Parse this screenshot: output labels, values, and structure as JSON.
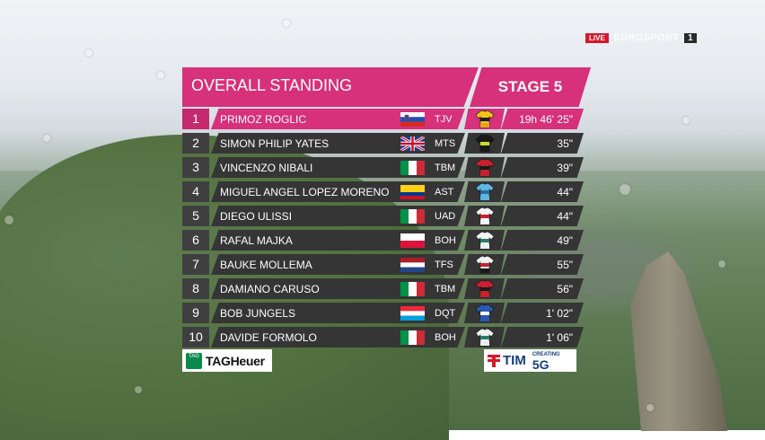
{
  "broadcast": {
    "live": "LIVE",
    "channel_name": "EUROSPORT",
    "channel_number": "1"
  },
  "standings": {
    "title": "OVERALL STANDING",
    "stage": "STAGE 5",
    "rows": [
      {
        "rank": "1",
        "name": "PRIMOZ ROGLIC",
        "flag": "slovenia",
        "team": "TJV",
        "jersey": "yellow-black",
        "time": "19h 46' 25\""
      },
      {
        "rank": "2",
        "name": "SIMON PHILIP YATES",
        "flag": "uk",
        "team": "MTS",
        "jersey": "black-yellow",
        "time": "35\""
      },
      {
        "rank": "3",
        "name": "VINCENZO NIBALI",
        "flag": "italy",
        "team": "TBM",
        "jersey": "red-black",
        "time": "39\""
      },
      {
        "rank": "4",
        "name": "MIGUEL ANGEL LOPEZ MORENO",
        "flag": "colombia",
        "team": "AST",
        "jersey": "light-blue",
        "time": "44\""
      },
      {
        "rank": "5",
        "name": "DIEGO ULISSI",
        "flag": "italy",
        "team": "UAD",
        "jersey": "white-red",
        "time": "44\""
      },
      {
        "rank": "6",
        "name": "RAFAL MAJKA",
        "flag": "poland",
        "team": "BOH",
        "jersey": "white-teal",
        "time": "49\""
      },
      {
        "rank": "7",
        "name": "BAUKE MOLLEMA",
        "flag": "netherlands",
        "team": "TFS",
        "jersey": "white-red-black",
        "time": "55\""
      },
      {
        "rank": "8",
        "name": "DAMIANO CARUSO",
        "flag": "italy",
        "team": "TBM",
        "jersey": "red-black",
        "time": "56\""
      },
      {
        "rank": "9",
        "name": "BOB JUNGELS",
        "flag": "luxembourg",
        "team": "DQT",
        "jersey": "blue-white",
        "time": "1' 02\""
      },
      {
        "rank": "10",
        "name": "DAVIDE FORMOLO",
        "flag": "italy",
        "team": "BOH",
        "jersey": "white-teal",
        "time": "1' 06\""
      }
    ]
  },
  "sponsors": {
    "left": {
      "badge": "TAG",
      "name": "TAGHeuer"
    },
    "right": {
      "name": "TIM",
      "creating": "CREATING",
      "fiveg": "5G"
    }
  },
  "colors": {
    "accent": "#d6317a",
    "row_bg": "#353535"
  }
}
